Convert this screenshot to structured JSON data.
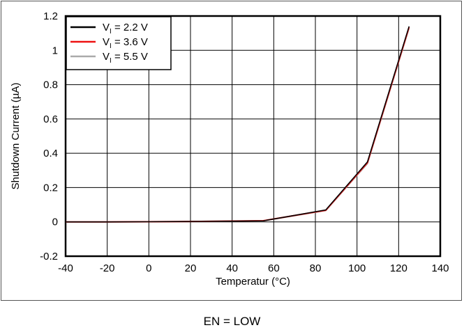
{
  "caption": "EN = LOW",
  "chart_data": {
    "type": "line",
    "xlabel": "Temperatur (°C)",
    "ylabel": "Shutdown Current (µA)",
    "xlim": [
      -40,
      140
    ],
    "ylim": [
      -0.2,
      1.2
    ],
    "xticks": [
      -40,
      -20,
      0,
      20,
      40,
      60,
      80,
      100,
      120,
      140
    ],
    "yticks": [
      -0.2,
      0,
      0.2,
      0.4,
      0.6,
      0.8,
      1,
      1.2
    ],
    "grid": true,
    "legend_position": "top-left",
    "series": [
      {
        "name_main": "V",
        "name_sub": "I",
        "name_rest": " = 2.2 V",
        "color": "#000000",
        "x": [
          -40,
          -20,
          0,
          25,
          55,
          85,
          105,
          125
        ],
        "y": [
          0,
          0,
          0.001,
          0.003,
          0.006,
          0.07,
          0.35,
          1.14
        ]
      },
      {
        "name_main": "V",
        "name_sub": "I",
        "name_rest": " = 3.6 V",
        "color": "#ee1111",
        "x": [
          -40,
          -20,
          0,
          25,
          55,
          85,
          105,
          125
        ],
        "y": [
          0,
          0,
          0.001,
          0.003,
          0.007,
          0.068,
          0.345,
          1.135
        ]
      },
      {
        "name_main": "V",
        "name_sub": "I",
        "name_rest": " = 5.5 V",
        "color": "#aaaaaa",
        "x": [
          -40,
          -20,
          0,
          25,
          55,
          85,
          105,
          125
        ],
        "y": [
          0,
          0,
          0.001,
          0.003,
          0.006,
          0.066,
          0.34,
          1.13
        ]
      }
    ]
  }
}
